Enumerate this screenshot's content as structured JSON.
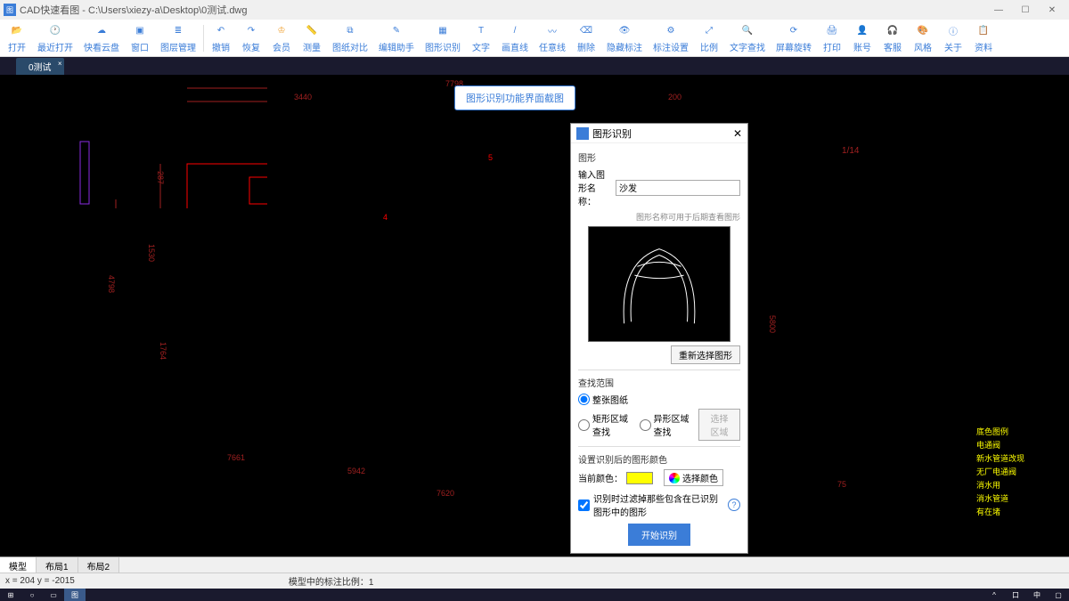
{
  "app": {
    "title": "CAD快速看图 - C:\\Users\\xiezy-a\\Desktop\\0测试.dwg"
  },
  "toolbar": {
    "items": [
      {
        "label": "打开",
        "icon": "folder"
      },
      {
        "label": "最近打开",
        "icon": "recent"
      },
      {
        "label": "快看云盘",
        "icon": "cloud"
      },
      {
        "label": "窗口",
        "icon": "window"
      },
      {
        "label": "图层管理",
        "icon": "layers"
      },
      {
        "label": "撤销",
        "icon": "undo",
        "sep": true
      },
      {
        "label": "恢复",
        "icon": "redo"
      },
      {
        "label": "会员",
        "icon": "vip",
        "vip": true
      },
      {
        "label": "测量",
        "icon": "measure"
      },
      {
        "label": "图纸对比",
        "icon": "compare"
      },
      {
        "label": "编辑助手",
        "icon": "edit"
      },
      {
        "label": "图形识别",
        "icon": "recognize"
      },
      {
        "label": "文字",
        "icon": "text"
      },
      {
        "label": "画直线",
        "icon": "line"
      },
      {
        "label": "任意线",
        "icon": "polyline"
      },
      {
        "label": "删除",
        "icon": "erase"
      },
      {
        "label": "隐藏标注",
        "icon": "hide"
      },
      {
        "label": "标注设置",
        "icon": "dim-set"
      },
      {
        "label": "比例",
        "icon": "scale"
      },
      {
        "label": "文字查找",
        "icon": "find"
      },
      {
        "label": "屏幕旋转",
        "icon": "rotate"
      },
      {
        "label": "打印",
        "icon": "print"
      },
      {
        "label": "账号",
        "icon": "account"
      },
      {
        "label": "客服",
        "icon": "support"
      },
      {
        "label": "风格",
        "icon": "style"
      },
      {
        "label": "关于",
        "icon": "about"
      },
      {
        "label": "资料",
        "icon": "docs"
      }
    ]
  },
  "tab": {
    "name": "0测试"
  },
  "callout": "图形识别功能界面截图",
  "dims": {
    "d1": "7798",
    "d2": "3440",
    "d3": "200",
    "d4": "1530",
    "d5": "287",
    "d6": "4798",
    "d7": "1764",
    "d8": "7661",
    "d9": "5942",
    "d10": "75",
    "d11": "7620",
    "d12": "5800",
    "m": "5",
    "marker4": "4"
  },
  "frac": {
    "num": "1",
    "den": "14"
  },
  "dialog": {
    "title": "图形识别",
    "section1": "图形",
    "nameLabel": "输入图形名称：",
    "nameValue": "沙发",
    "nameHint": "图形名称可用于后期查看图形",
    "reselect": "重新选择图形",
    "section2": "查找范围",
    "radio1": "整张图纸",
    "radio2": "矩形区域查找",
    "radio3": "异形区域查找",
    "selectArea": "选择区域",
    "section3": "设置识别后的图形颜色",
    "colorLabel": "当前颜色：",
    "colorBtn": "选择颜色",
    "checkbox": "识别时过滤掉那些包含在已识别图形中的图形",
    "start": "开始识别"
  },
  "legend": {
    "items": [
      "底色图例",
      "电通阀",
      "新水管道改现",
      "无厂电通阀",
      "消水用",
      "消水管道",
      "有在堵"
    ]
  },
  "bottomTabs": {
    "t1": "模型",
    "t2": "布局1",
    "t3": "布局2"
  },
  "status": {
    "coords": "x = 204  y = -2015",
    "info": "模型中的标注比例：1"
  },
  "colors": {
    "blueprint_red": "#ff0000",
    "accent_blue": "#3b7dd8",
    "dim_red": "#a02020",
    "legend_yellow": "#ffff00",
    "swatch": "#ffff00"
  }
}
